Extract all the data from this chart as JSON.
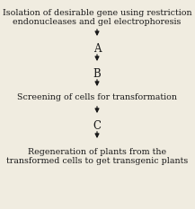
{
  "bg_color": "#f0ece0",
  "text_color": "#1a1a1a",
  "title_top": "Isolation of desirable gene using restriction\nendonucleases and gel electrophoresis",
  "label_a": "A",
  "label_b": "B",
  "label_c": "C",
  "text_screening": "Screening of cells for transformation",
  "text_bottom": "Regeneration of plants from the\ntransformed cells to get transgenic plants",
  "font_size_main": 6.8,
  "font_size_label": 8.5
}
